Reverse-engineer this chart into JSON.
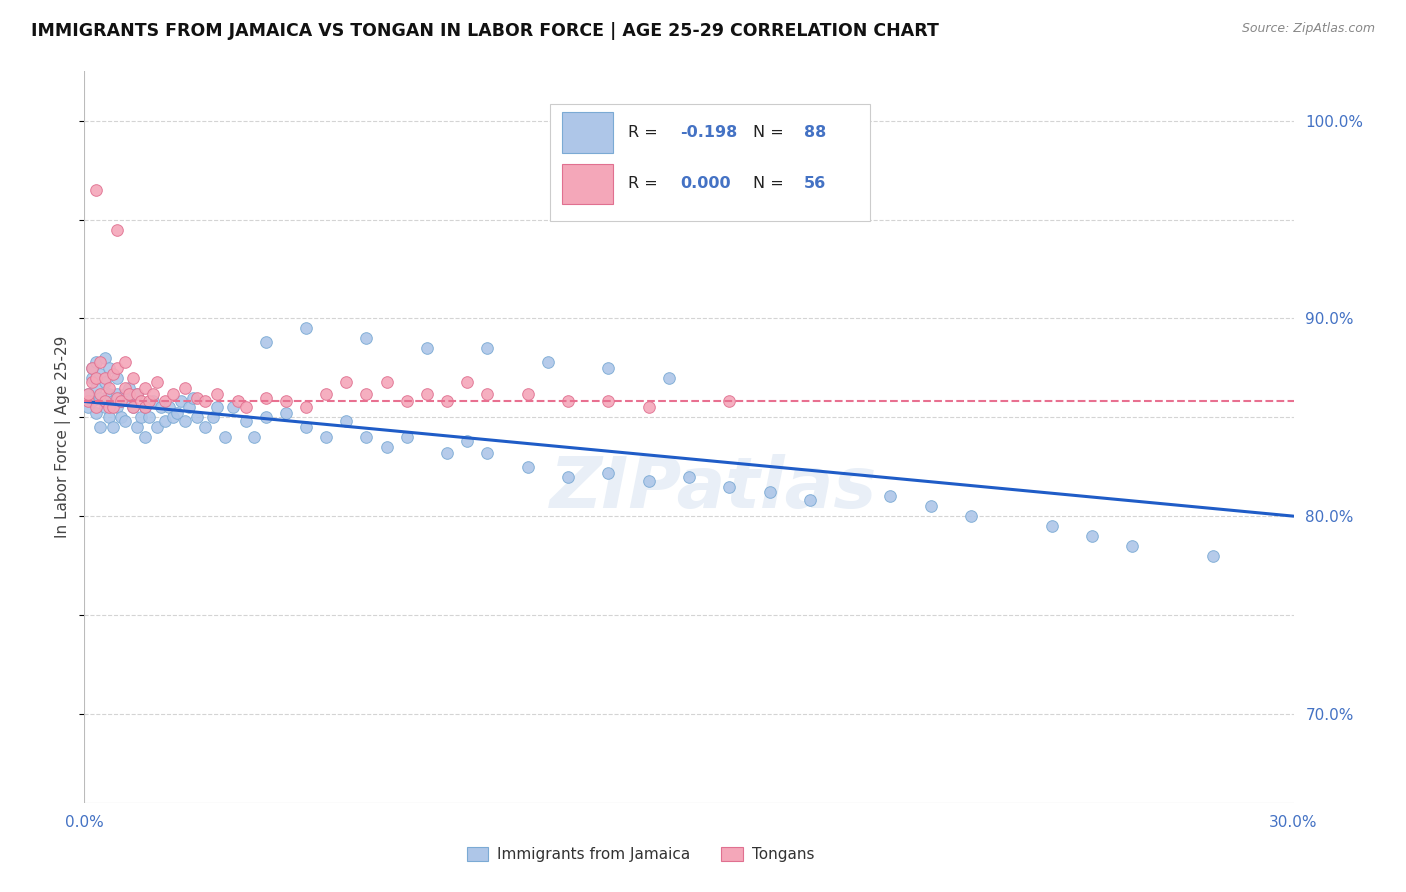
{
  "title": "IMMIGRANTS FROM JAMAICA VS TONGAN IN LABOR FORCE | AGE 25-29 CORRELATION CHART",
  "source": "Source: ZipAtlas.com",
  "ylabel": "In Labor Force | Age 25-29",
  "xlim": [
    0.0,
    0.3
  ],
  "ylim": [
    0.655,
    1.025
  ],
  "ytick_labels": [
    "70.0%",
    "80.0%",
    "90.0%",
    "100.0%"
  ],
  "ytick_values": [
    0.7,
    0.8,
    0.9,
    1.0
  ],
  "xtick_labels": [
    "0.0%",
    "",
    "",
    "",
    "",
    "",
    "30.0%"
  ],
  "xtick_values": [
    0.0,
    0.05,
    0.1,
    0.15,
    0.2,
    0.25,
    0.3
  ],
  "background_color": "#ffffff",
  "grid_color": "#d0d0d0",
  "axis_label_color": "#4472c4",
  "watermark": "ZIPatlas",
  "jamaica_scatter_x": [
    0.001,
    0.001,
    0.002,
    0.002,
    0.002,
    0.003,
    0.003,
    0.003,
    0.004,
    0.004,
    0.004,
    0.005,
    0.005,
    0.005,
    0.006,
    0.006,
    0.006,
    0.007,
    0.007,
    0.008,
    0.008,
    0.008,
    0.009,
    0.009,
    0.01,
    0.01,
    0.011,
    0.011,
    0.012,
    0.013,
    0.013,
    0.014,
    0.015,
    0.015,
    0.016,
    0.017,
    0.018,
    0.019,
    0.02,
    0.021,
    0.022,
    0.023,
    0.024,
    0.025,
    0.026,
    0.027,
    0.028,
    0.03,
    0.032,
    0.033,
    0.035,
    0.037,
    0.04,
    0.042,
    0.045,
    0.05,
    0.055,
    0.06,
    0.065,
    0.07,
    0.075,
    0.08,
    0.09,
    0.095,
    0.1,
    0.11,
    0.12,
    0.13,
    0.14,
    0.15,
    0.16,
    0.17,
    0.18,
    0.2,
    0.21,
    0.22,
    0.24,
    0.25,
    0.26,
    0.28,
    0.045,
    0.055,
    0.07,
    0.085,
    0.1,
    0.115,
    0.13,
    0.145
  ],
  "jamaica_scatter_y": [
    0.855,
    0.862,
    0.858,
    0.87,
    0.875,
    0.852,
    0.865,
    0.878,
    0.86,
    0.845,
    0.872,
    0.855,
    0.868,
    0.88,
    0.85,
    0.862,
    0.875,
    0.858,
    0.845,
    0.855,
    0.862,
    0.87,
    0.85,
    0.858,
    0.862,
    0.848,
    0.858,
    0.865,
    0.855,
    0.845,
    0.862,
    0.85,
    0.855,
    0.84,
    0.85,
    0.858,
    0.845,
    0.855,
    0.848,
    0.855,
    0.85,
    0.852,
    0.858,
    0.848,
    0.855,
    0.86,
    0.85,
    0.845,
    0.85,
    0.855,
    0.84,
    0.855,
    0.848,
    0.84,
    0.85,
    0.852,
    0.845,
    0.84,
    0.848,
    0.84,
    0.835,
    0.84,
    0.832,
    0.838,
    0.832,
    0.825,
    0.82,
    0.822,
    0.818,
    0.82,
    0.815,
    0.812,
    0.808,
    0.81,
    0.805,
    0.8,
    0.795,
    0.79,
    0.785,
    0.78,
    0.888,
    0.895,
    0.89,
    0.885,
    0.885,
    0.878,
    0.875,
    0.87
  ],
  "tongan_scatter_x": [
    0.001,
    0.001,
    0.002,
    0.002,
    0.003,
    0.003,
    0.004,
    0.004,
    0.005,
    0.005,
    0.006,
    0.006,
    0.007,
    0.007,
    0.008,
    0.008,
    0.009,
    0.01,
    0.01,
    0.011,
    0.012,
    0.012,
    0.013,
    0.014,
    0.015,
    0.015,
    0.016,
    0.017,
    0.018,
    0.02,
    0.022,
    0.025,
    0.028,
    0.03,
    0.033,
    0.038,
    0.04,
    0.045,
    0.05,
    0.055,
    0.06,
    0.065,
    0.07,
    0.075,
    0.08,
    0.085,
    0.09,
    0.095,
    0.1,
    0.11,
    0.12,
    0.13,
    0.14,
    0.16,
    0.003,
    0.008
  ],
  "tongan_scatter_y": [
    0.858,
    0.862,
    0.868,
    0.875,
    0.855,
    0.87,
    0.862,
    0.878,
    0.858,
    0.87,
    0.855,
    0.865,
    0.855,
    0.872,
    0.86,
    0.875,
    0.858,
    0.865,
    0.878,
    0.862,
    0.855,
    0.87,
    0.862,
    0.858,
    0.865,
    0.855,
    0.858,
    0.862,
    0.868,
    0.858,
    0.862,
    0.865,
    0.86,
    0.858,
    0.862,
    0.858,
    0.855,
    0.86,
    0.858,
    0.855,
    0.862,
    0.868,
    0.862,
    0.868,
    0.858,
    0.862,
    0.858,
    0.868,
    0.862,
    0.862,
    0.858,
    0.858,
    0.855,
    0.858,
    0.965,
    0.945
  ],
  "jamaica_trend_x": [
    0.0,
    0.3
  ],
  "jamaica_trend_y": [
    0.858,
    0.8
  ],
  "tongan_trend_y": [
    0.858,
    0.858
  ],
  "jamaica_trend_color": "#1f5cc7",
  "tongan_trend_color": "#e87090",
  "marker_size": 70,
  "jamaica_marker_color": "#aec6e8",
  "jamaica_marker_edge": "#7baad4",
  "tongan_marker_color": "#f4a7b9",
  "tongan_marker_edge": "#e07090",
  "legend_R1": "-0.198",
  "legend_N1": "88",
  "legend_R2": "0.000",
  "legend_N2": "56",
  "bottom_label1": "Immigrants from Jamaica",
  "bottom_label2": "Tongans"
}
